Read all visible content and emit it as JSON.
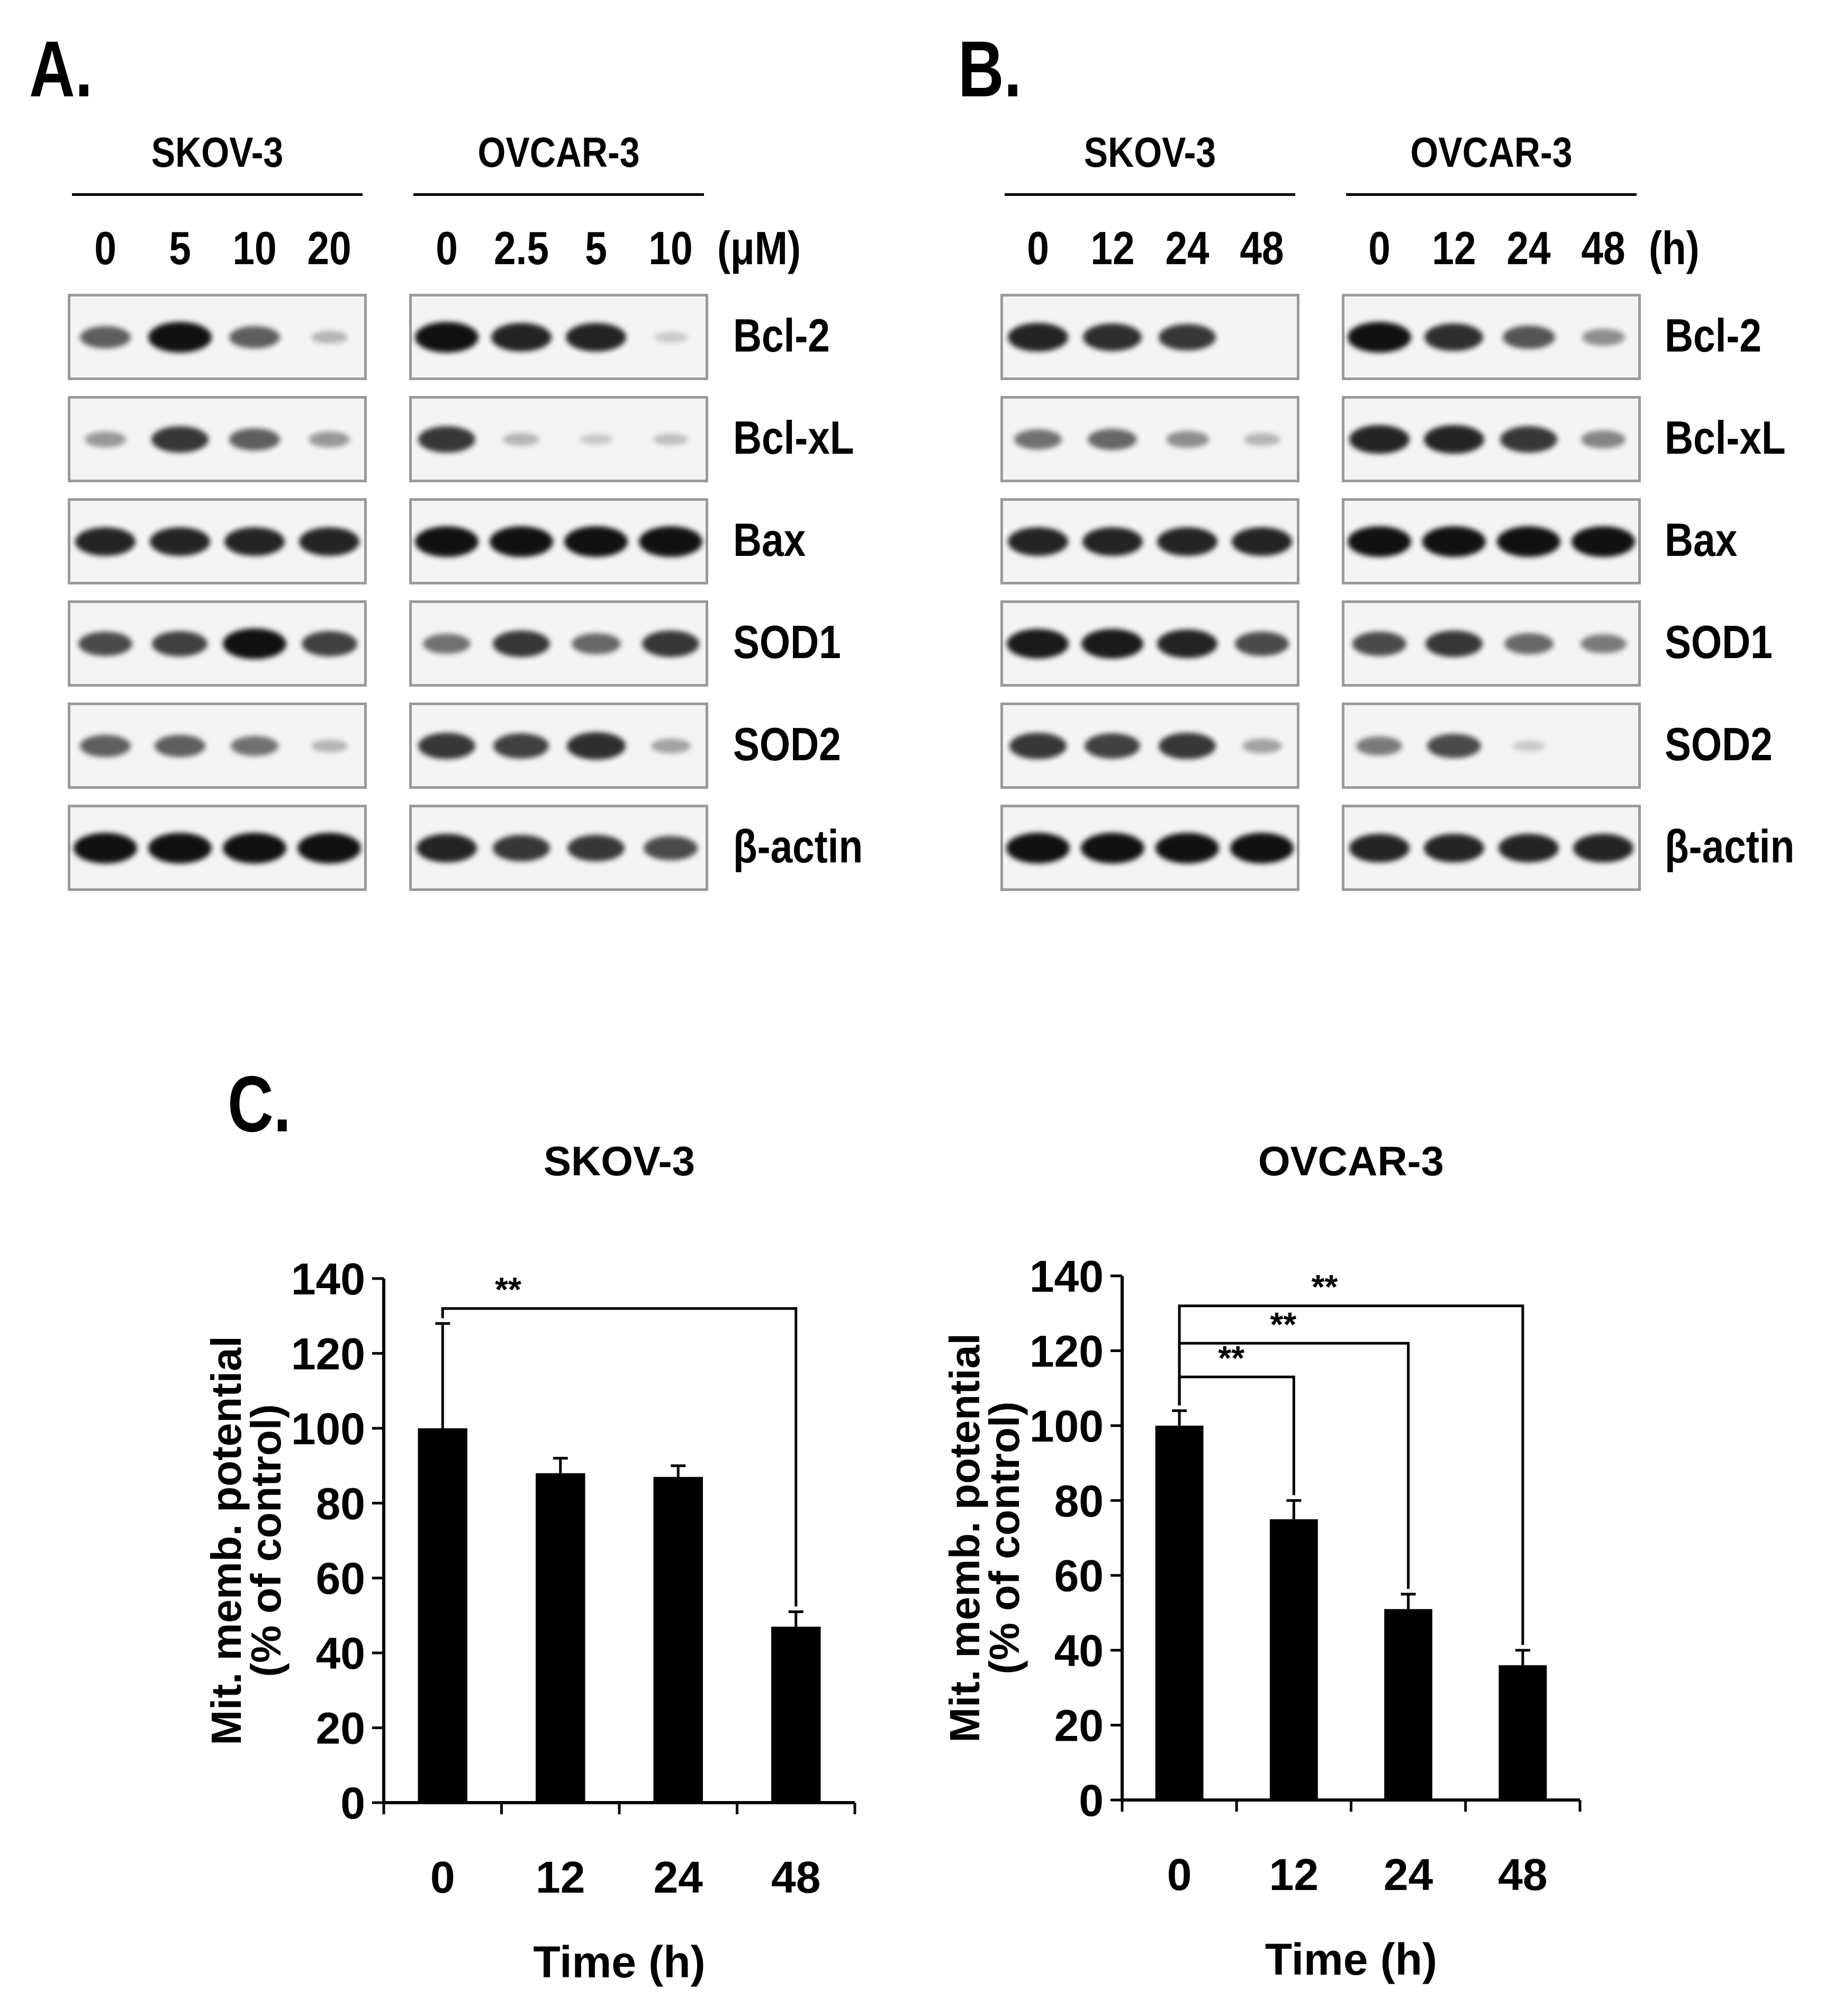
{
  "panels": {
    "a": "A.",
    "b": "B.",
    "c": "C."
  },
  "blots": {
    "a_left": {
      "title": "SKOV-3",
      "lanes": [
        "0",
        "5",
        "10",
        "20"
      ]
    },
    "a_right": {
      "title": "OVCAR-3",
      "lanes": [
        "0",
        "2.5",
        "5",
        "10"
      ],
      "unit": "(μM)"
    },
    "b_left": {
      "title": "SKOV-3",
      "lanes": [
        "0",
        "12",
        "24",
        "48"
      ]
    },
    "b_right": {
      "title": "OVCAR-3",
      "lanes": [
        "0",
        "12",
        "24",
        "48"
      ],
      "unit": "(h)"
    },
    "proteins": [
      "Bcl-2",
      "Bcl-xL",
      "Bax",
      "SOD1",
      "SOD2",
      "β-actin"
    ],
    "intensities": {
      "a_left": [
        [
          0.6,
          1.0,
          0.6,
          0.15
        ],
        [
          0.3,
          0.8,
          0.6,
          0.3
        ],
        [
          0.9,
          0.9,
          0.9,
          0.9
        ],
        [
          0.7,
          0.75,
          1.0,
          0.75
        ],
        [
          0.6,
          0.6,
          0.5,
          0.15
        ],
        [
          1.0,
          1.0,
          1.0,
          1.0
        ]
      ],
      "a_right": [
        [
          1.0,
          0.9,
          0.9,
          0.05
        ],
        [
          0.8,
          0.15,
          0.05,
          0.1
        ],
        [
          1.0,
          1.0,
          1.0,
          1.0
        ],
        [
          0.5,
          0.8,
          0.55,
          0.8
        ],
        [
          0.8,
          0.75,
          0.85,
          0.25
        ],
        [
          0.9,
          0.8,
          0.8,
          0.7
        ]
      ],
      "b_left": [
        [
          0.9,
          0.85,
          0.8,
          0.0
        ],
        [
          0.5,
          0.55,
          0.35,
          0.15
        ],
        [
          0.9,
          0.9,
          0.9,
          0.9
        ],
        [
          0.95,
          0.95,
          0.9,
          0.7
        ],
        [
          0.8,
          0.75,
          0.8,
          0.25
        ],
        [
          1.0,
          1.0,
          1.0,
          1.0
        ]
      ],
      "b_right": [
        [
          1.0,
          0.85,
          0.65,
          0.35
        ],
        [
          0.9,
          0.9,
          0.8,
          0.4
        ],
        [
          1.0,
          1.0,
          1.0,
          1.0
        ],
        [
          0.7,
          0.8,
          0.55,
          0.45
        ],
        [
          0.45,
          0.7,
          0.05,
          0.0
        ],
        [
          0.9,
          0.9,
          0.9,
          0.9
        ]
      ]
    }
  },
  "chart_data": [
    {
      "type": "bar",
      "title": "SKOV-3",
      "xlabel": "Time (h)",
      "ylabel": [
        "Mit. memb. potential",
        "(% of control)"
      ],
      "categories": [
        "0",
        "12",
        "24",
        "48"
      ],
      "values": [
        100,
        88,
        87,
        47
      ],
      "errors": [
        28,
        4,
        3,
        4
      ],
      "ylim": [
        0,
        140
      ],
      "yticks": [
        "0",
        "20",
        "40",
        "60",
        "80",
        "100",
        "120",
        "140"
      ],
      "color": "#000000",
      "significance": [
        {
          "from": "0",
          "to": "48",
          "label": "**"
        }
      ]
    },
    {
      "type": "bar",
      "title": "OVCAR-3",
      "xlabel": "Time (h)",
      "ylabel": [
        "Mit. memb. potential",
        "(% of control)"
      ],
      "categories": [
        "0",
        "12",
        "24",
        "48"
      ],
      "values": [
        100,
        75,
        51,
        36
      ],
      "errors": [
        4,
        5,
        4,
        4
      ],
      "ylim": [
        0,
        140
      ],
      "yticks": [
        "0",
        "20",
        "40",
        "60",
        "80",
        "100",
        "120",
        "140"
      ],
      "color": "#000000",
      "significance": [
        {
          "from": "0",
          "to": "12",
          "label": "**"
        },
        {
          "from": "0",
          "to": "24",
          "label": "**"
        },
        {
          "from": "0",
          "to": "48",
          "label": "**"
        }
      ]
    }
  ]
}
